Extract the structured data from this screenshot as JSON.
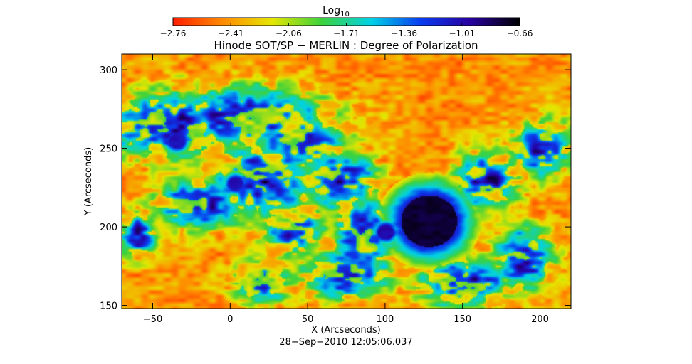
{
  "chart_data": {
    "type": "heatmap",
    "title": "Hinode SOT/SP − MERLIN : Degree of Polarization",
    "xlabel": "X (Arcseconds)",
    "ylabel": "Y (Arcseconds)",
    "timestamp": "28−Sep−2010 12:05:06.037",
    "xlim": [
      -70,
      220
    ],
    "ylim": [
      148,
      310
    ],
    "x_ticks": [
      {
        "value": -50,
        "label": "−50"
      },
      {
        "value": 0,
        "label": "0"
      },
      {
        "value": 50,
        "label": "50"
      },
      {
        "value": 100,
        "label": "100"
      },
      {
        "value": 150,
        "label": "150"
      },
      {
        "value": 200,
        "label": "200"
      }
    ],
    "y_ticks": [
      {
        "value": 150,
        "label": "150"
      },
      {
        "value": 200,
        "label": "200"
      },
      {
        "value": 250,
        "label": "250"
      },
      {
        "value": 300,
        "label": "300"
      }
    ],
    "colorbar": {
      "title_main": "Log",
      "title_sub": "10",
      "range": [
        -2.76,
        -0.66
      ],
      "scale": "log10",
      "ticks": [
        {
          "value": -2.76,
          "label": "−2.76"
        },
        {
          "value": -2.41,
          "label": "−2.41"
        },
        {
          "value": -2.06,
          "label": "−2.06"
        },
        {
          "value": -1.71,
          "label": "−1.71"
        },
        {
          "value": -1.36,
          "label": "−1.36"
        },
        {
          "value": -1.01,
          "label": "−1.01"
        },
        {
          "value": -0.66,
          "label": "−0.66"
        }
      ],
      "colors": [
        "#ff1e00",
        "#ff8a00",
        "#e6e600",
        "#3cd23c",
        "#00d2e6",
        "#0a3cf0",
        "#2800a0",
        "#000000"
      ]
    },
    "features": [
      {
        "name": "main sunspot umbra",
        "x": 128,
        "y": 204,
        "log10_dop": -0.9
      },
      {
        "name": "pore",
        "x": 100,
        "y": 197,
        "log10_dop": -1.0
      },
      {
        "name": "pore",
        "x": 3,
        "y": 228,
        "log10_dop": -1.05
      },
      {
        "name": "pore",
        "x": -35,
        "y": 255,
        "log10_dop": -1.05
      }
    ]
  }
}
